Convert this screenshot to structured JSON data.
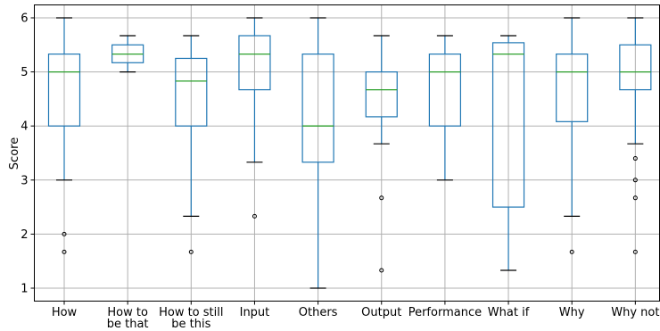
{
  "chart_data": {
    "type": "box",
    "title": "",
    "xlabel": "",
    "ylabel": "Score",
    "ylim": [
      0.75,
      6.25
    ],
    "yticks": [
      1,
      2,
      3,
      4,
      5,
      6
    ],
    "grid": true,
    "colors": {
      "box": "#1f77b4",
      "median": "#2ca02c",
      "whisker": "#1f77b4",
      "cap": "#000000",
      "flier": "#000000",
      "grid": "#b0b0b0"
    },
    "categories": [
      {
        "label": [
          "How"
        ],
        "q1": 4.0,
        "median": 5.0,
        "q3": 5.33,
        "whisker_low": 3.0,
        "whisker_high": 6.0,
        "fliers": [
          2.0,
          1.67
        ]
      },
      {
        "label": [
          "How to",
          "be that"
        ],
        "q1": 5.17,
        "median": 5.33,
        "q3": 5.5,
        "whisker_low": 5.0,
        "whisker_high": 5.67,
        "fliers": []
      },
      {
        "label": [
          "How to still",
          "be this"
        ],
        "q1": 4.0,
        "median": 4.83,
        "q3": 5.25,
        "whisker_low": 2.33,
        "whisker_high": 5.67,
        "fliers": [
          1.67
        ]
      },
      {
        "label": [
          "Input"
        ],
        "q1": 4.67,
        "median": 5.33,
        "q3": 5.67,
        "whisker_low": 3.33,
        "whisker_high": 6.0,
        "fliers": [
          2.33
        ]
      },
      {
        "label": [
          "Others"
        ],
        "q1": 3.33,
        "median": 4.0,
        "q3": 5.33,
        "whisker_low": 1.0,
        "whisker_high": 6.0,
        "fliers": []
      },
      {
        "label": [
          "Output"
        ],
        "q1": 4.17,
        "median": 4.67,
        "q3": 5.0,
        "whisker_low": 3.67,
        "whisker_high": 5.67,
        "fliers": [
          2.67,
          1.33
        ]
      },
      {
        "label": [
          "Performance"
        ],
        "q1": 4.0,
        "median": 5.0,
        "q3": 5.33,
        "whisker_low": 3.0,
        "whisker_high": 5.67,
        "fliers": []
      },
      {
        "label": [
          "What if"
        ],
        "q1": 2.5,
        "median": 5.33,
        "q3": 5.54,
        "whisker_low": 1.33,
        "whisker_high": 5.67,
        "fliers": []
      },
      {
        "label": [
          "Why"
        ],
        "q1": 4.08,
        "median": 5.0,
        "q3": 5.33,
        "whisker_low": 2.33,
        "whisker_high": 6.0,
        "fliers": [
          1.67
        ]
      },
      {
        "label": [
          "Why not"
        ],
        "q1": 4.67,
        "median": 5.0,
        "q3": 5.5,
        "whisker_low": 3.67,
        "whisker_high": 6.0,
        "fliers": [
          3.4,
          3.0,
          2.67,
          1.67
        ]
      }
    ]
  }
}
